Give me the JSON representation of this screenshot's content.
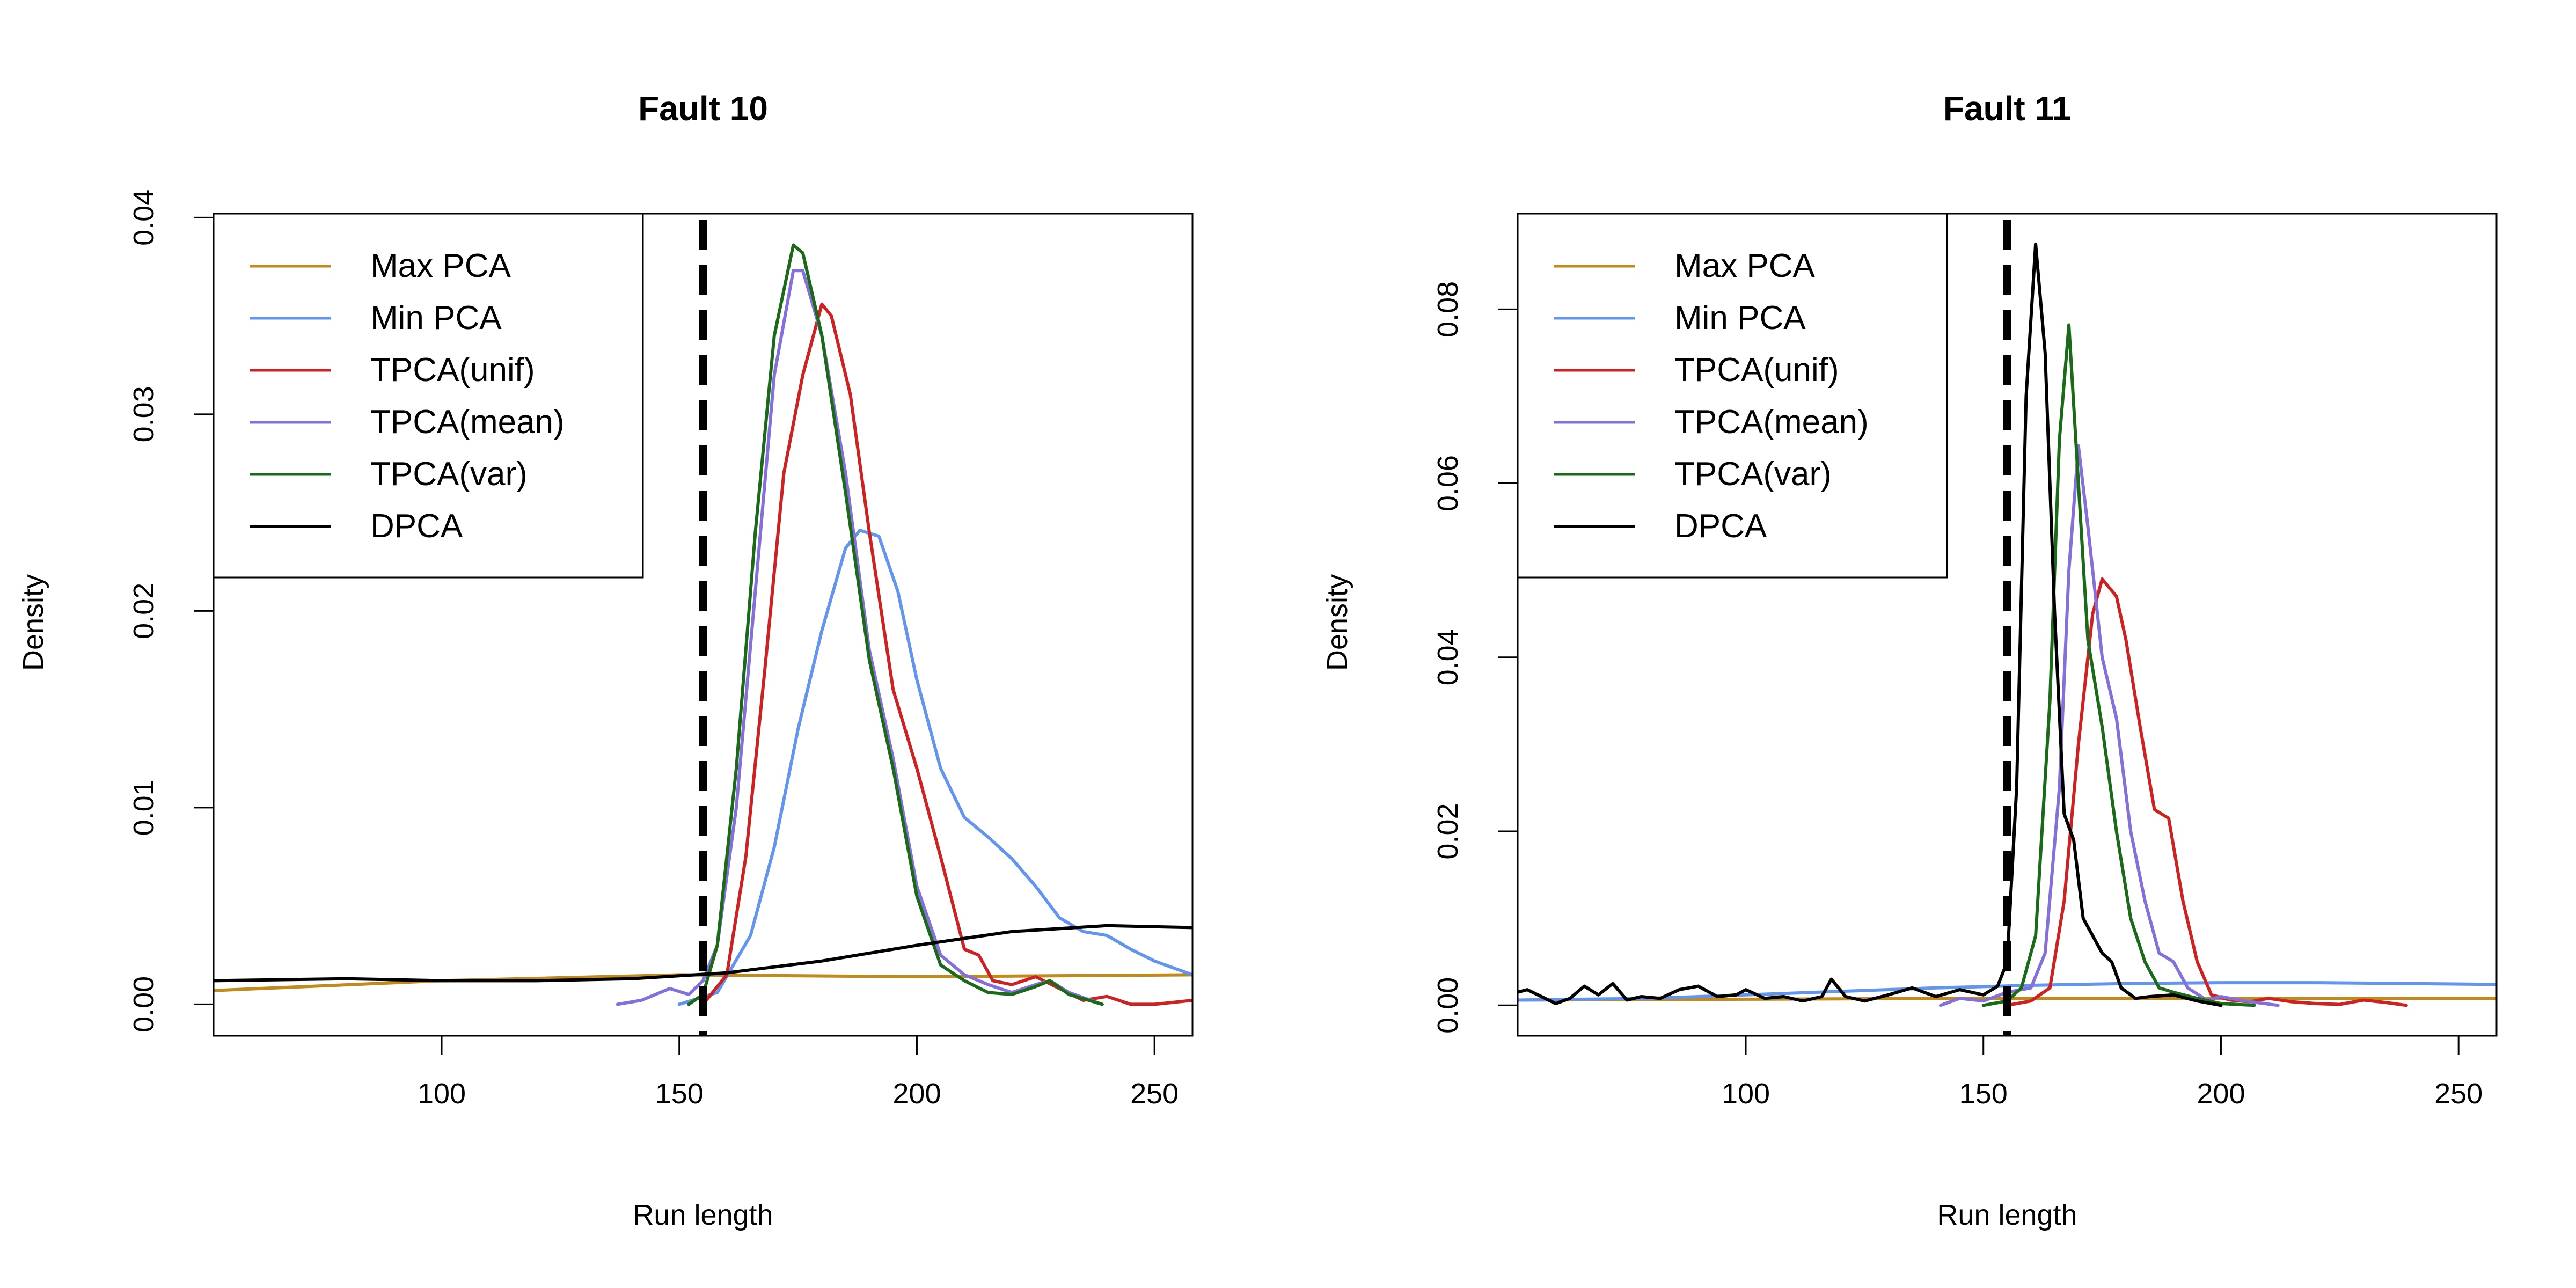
{
  "chart_data": [
    {
      "type": "line",
      "title": "Fault 10",
      "xlabel": "Run length",
      "ylabel": "Density",
      "xlim": [
        52,
        258
      ],
      "ylim": [
        -0.0016,
        0.0402
      ],
      "x_ticks": [
        100,
        150,
        200,
        250
      ],
      "y_ticks": [
        0.0,
        0.01,
        0.02,
        0.03,
        0.04
      ],
      "y_tick_labels": [
        "0.00",
        "0.01",
        "0.02",
        "0.03",
        "0.04"
      ],
      "grid": false,
      "legend_position": "top-left",
      "reference_line": {
        "x": 155,
        "style": "dashed"
      },
      "series": [
        {
          "name": "Max PCA",
          "color": "#C08A1E",
          "points": [
            [
              52,
              0.0007
            ],
            [
              100,
              0.0012
            ],
            [
              150,
              0.0015
            ],
            [
              200,
              0.0014
            ],
            [
              258,
              0.0015
            ]
          ]
        },
        {
          "name": "Min PCA",
          "color": "#6495ED",
          "points": [
            [
              150,
              0.0
            ],
            [
              158,
              0.0006
            ],
            [
              165,
              0.0035
            ],
            [
              170,
              0.008
            ],
            [
              175,
              0.014
            ],
            [
              180,
              0.019
            ],
            [
              185,
              0.0232
            ],
            [
              188,
              0.0241
            ],
            [
              192,
              0.0238
            ],
            [
              196,
              0.021
            ],
            [
              200,
              0.0165
            ],
            [
              205,
              0.012
            ],
            [
              210,
              0.0095
            ],
            [
              215,
              0.0085
            ],
            [
              220,
              0.0074
            ],
            [
              225,
              0.006
            ],
            [
              230,
              0.0044
            ],
            [
              235,
              0.0037
            ],
            [
              240,
              0.0035
            ],
            [
              245,
              0.0028
            ],
            [
              250,
              0.0022
            ],
            [
              258,
              0.0015
            ]
          ]
        },
        {
          "name": "TPCA(unif)",
          "color": "#CC2222",
          "points": [
            [
              155,
              0.0
            ],
            [
              160,
              0.0015
            ],
            [
              164,
              0.0075
            ],
            [
              168,
              0.017
            ],
            [
              172,
              0.027
            ],
            [
              176,
              0.032
            ],
            [
              180,
              0.0356
            ],
            [
              182,
              0.035
            ],
            [
              186,
              0.031
            ],
            [
              190,
              0.024
            ],
            [
              195,
              0.016
            ],
            [
              200,
              0.012
            ],
            [
              205,
              0.0075
            ],
            [
              210,
              0.0028
            ],
            [
              213,
              0.0025
            ],
            [
              216,
              0.0012
            ],
            [
              220,
              0.001
            ],
            [
              225,
              0.0014
            ],
            [
              230,
              0.0008
            ],
            [
              235,
              0.0002
            ],
            [
              240,
              0.0004
            ],
            [
              245,
              0.0
            ],
            [
              250,
              0.0
            ],
            [
              258,
              0.0002
            ]
          ]
        },
        {
          "name": "TPCA(mean)",
          "color": "#8470D8",
          "points": [
            [
              137,
              0.0
            ],
            [
              142,
              0.0002
            ],
            [
              148,
              0.0008
            ],
            [
              152,
              0.0005
            ],
            [
              155,
              0.0012
            ],
            [
              158,
              0.003
            ],
            [
              162,
              0.01
            ],
            [
              166,
              0.021
            ],
            [
              170,
              0.032
            ],
            [
              174,
              0.0373
            ],
            [
              176,
              0.0373
            ],
            [
              180,
              0.034
            ],
            [
              185,
              0.027
            ],
            [
              190,
              0.018
            ],
            [
              195,
              0.0125
            ],
            [
              200,
              0.006
            ],
            [
              205,
              0.0025
            ],
            [
              210,
              0.0015
            ],
            [
              215,
              0.001
            ],
            [
              220,
              0.0006
            ],
            [
              225,
              0.001
            ],
            [
              228,
              0.0012
            ],
            [
              232,
              0.0006
            ],
            [
              239,
              0.0
            ]
          ]
        },
        {
          "name": "TPCA(var)",
          "color": "#1A6A1A",
          "points": [
            [
              152,
              0.0
            ],
            [
              155,
              0.0005
            ],
            [
              158,
              0.003
            ],
            [
              162,
              0.012
            ],
            [
              166,
              0.024
            ],
            [
              170,
              0.034
            ],
            [
              174,
              0.0386
            ],
            [
              176,
              0.0382
            ],
            [
              180,
              0.034
            ],
            [
              185,
              0.026
            ],
            [
              190,
              0.0175
            ],
            [
              195,
              0.012
            ],
            [
              200,
              0.0055
            ],
            [
              205,
              0.002
            ],
            [
              210,
              0.0012
            ],
            [
              215,
              0.0006
            ],
            [
              220,
              0.0005
            ],
            [
              225,
              0.0009
            ],
            [
              228,
              0.0012
            ],
            [
              232,
              0.0005
            ],
            [
              239,
              0.0
            ]
          ]
        },
        {
          "name": "DPCA",
          "color": "#000000",
          "points": [
            [
              52,
              0.0012
            ],
            [
              80,
              0.0013
            ],
            [
              100,
              0.0012
            ],
            [
              120,
              0.0012
            ],
            [
              140,
              0.0013
            ],
            [
              160,
              0.0016
            ],
            [
              180,
              0.0022
            ],
            [
              200,
              0.003
            ],
            [
              220,
              0.0037
            ],
            [
              240,
              0.004
            ],
            [
              258,
              0.0039
            ]
          ]
        }
      ]
    },
    {
      "type": "line",
      "title": "Fault 11",
      "xlabel": "Run length",
      "ylabel": "Density",
      "xlim": [
        52,
        258
      ],
      "ylim": [
        -0.0035,
        0.091
      ],
      "x_ticks": [
        100,
        150,
        200,
        250
      ],
      "y_ticks": [
        0.0,
        0.02,
        0.04,
        0.06,
        0.08
      ],
      "y_tick_labels": [
        "0.00",
        "0.02",
        "0.04",
        "0.06",
        "0.08"
      ],
      "grid": false,
      "legend_position": "top-left",
      "reference_line": {
        "x": 155,
        "style": "dashed"
      },
      "series": [
        {
          "name": "Max PCA",
          "color": "#C08A1E",
          "points": [
            [
              52,
              0.0006
            ],
            [
              100,
              0.0007
            ],
            [
              150,
              0.0008
            ],
            [
              200,
              0.0008
            ],
            [
              258,
              0.0008
            ]
          ]
        },
        {
          "name": "Min PCA",
          "color": "#6495ED",
          "points": [
            [
              52,
              0.0006
            ],
            [
              80,
              0.0008
            ],
            [
              100,
              0.0012
            ],
            [
              120,
              0.0016
            ],
            [
              140,
              0.002
            ],
            [
              160,
              0.0023
            ],
            [
              180,
              0.0025
            ],
            [
              200,
              0.0026
            ],
            [
              220,
              0.0026
            ],
            [
              240,
              0.0025
            ],
            [
              258,
              0.0024
            ]
          ]
        },
        {
          "name": "TPCA(unif)",
          "color": "#CC2222",
          "points": [
            [
              155,
              0.0
            ],
            [
              160,
              0.0005
            ],
            [
              164,
              0.002
            ],
            [
              167,
              0.012
            ],
            [
              170,
              0.03
            ],
            [
              173,
              0.045
            ],
            [
              175,
              0.049
            ],
            [
              178,
              0.047
            ],
            [
              180,
              0.042
            ],
            [
              183,
              0.032
            ],
            [
              186,
              0.0225
            ],
            [
              189,
              0.0215
            ],
            [
              192,
              0.012
            ],
            [
              195,
              0.005
            ],
            [
              198,
              0.0012
            ],
            [
              202,
              0.0006
            ],
            [
              206,
              0.0004
            ],
            [
              210,
              0.0008
            ],
            [
              215,
              0.0004
            ],
            [
              220,
              0.0002
            ],
            [
              225,
              0.0001
            ],
            [
              230,
              0.0006
            ],
            [
              235,
              0.0003
            ],
            [
              239,
              0.0
            ]
          ]
        },
        {
          "name": "TPCA(mean)",
          "color": "#8470D8",
          "points": [
            [
              141,
              0.0
            ],
            [
              145,
              0.0008
            ],
            [
              150,
              0.0005
            ],
            [
              155,
              0.0015
            ],
            [
              160,
              0.002
            ],
            [
              163,
              0.006
            ],
            [
              166,
              0.025
            ],
            [
              168,
              0.05
            ],
            [
              170,
              0.0643
            ],
            [
              172,
              0.055
            ],
            [
              175,
              0.04
            ],
            [
              178,
              0.033
            ],
            [
              181,
              0.02
            ],
            [
              184,
              0.012
            ],
            [
              187,
              0.006
            ],
            [
              190,
              0.005
            ],
            [
              193,
              0.002
            ],
            [
              197,
              0.0006
            ],
            [
              200,
              0.001
            ],
            [
              205,
              0.0005
            ],
            [
              212,
              0.0
            ]
          ]
        },
        {
          "name": "TPCA(var)",
          "color": "#1A6A1A",
          "points": [
            [
              150,
              0.0
            ],
            [
              155,
              0.0005
            ],
            [
              158,
              0.002
            ],
            [
              161,
              0.008
            ],
            [
              164,
              0.035
            ],
            [
              166,
              0.065
            ],
            [
              168,
              0.0782
            ],
            [
              170,
              0.06
            ],
            [
              172,
              0.042
            ],
            [
              175,
              0.032
            ],
            [
              178,
              0.02
            ],
            [
              181,
              0.01
            ],
            [
              184,
              0.005
            ],
            [
              187,
              0.002
            ],
            [
              190,
              0.0015
            ],
            [
              195,
              0.0008
            ],
            [
              200,
              0.0002
            ],
            [
              207,
              0.0
            ]
          ]
        },
        {
          "name": "DPCA",
          "color": "#000000",
          "points": [
            [
              52,
              0.0015
            ],
            [
              54,
              0.0018
            ],
            [
              57,
              0.001
            ],
            [
              60,
              0.0002
            ],
            [
              63,
              0.0008
            ],
            [
              66,
              0.0022
            ],
            [
              69,
              0.0012
            ],
            [
              72,
              0.0025
            ],
            [
              75,
              0.0006
            ],
            [
              78,
              0.001
            ],
            [
              82,
              0.0008
            ],
            [
              86,
              0.0018
            ],
            [
              90,
              0.0022
            ],
            [
              94,
              0.001
            ],
            [
              98,
              0.0012
            ],
            [
              100,
              0.0018
            ],
            [
              104,
              0.0008
            ],
            [
              108,
              0.001
            ],
            [
              112,
              0.0005
            ],
            [
              116,
              0.001
            ],
            [
              118,
              0.003
            ],
            [
              121,
              0.001
            ],
            [
              125,
              0.0005
            ],
            [
              130,
              0.0012
            ],
            [
              135,
              0.002
            ],
            [
              140,
              0.001
            ],
            [
              145,
              0.0018
            ],
            [
              150,
              0.0012
            ],
            [
              153,
              0.0022
            ],
            [
              155,
              0.005
            ],
            [
              157,
              0.025
            ],
            [
              159,
              0.07
            ],
            [
              161,
              0.0875
            ],
            [
              163,
              0.075
            ],
            [
              165,
              0.045
            ],
            [
              167,
              0.022
            ],
            [
              169,
              0.019
            ],
            [
              171,
              0.01
            ],
            [
              173,
              0.008
            ],
            [
              175,
              0.006
            ],
            [
              177,
              0.005
            ],
            [
              179,
              0.002
            ],
            [
              182,
              0.0008
            ],
            [
              185,
              0.001
            ],
            [
              190,
              0.0012
            ],
            [
              195,
              0.0005
            ],
            [
              200,
              0.0
            ]
          ]
        }
      ]
    }
  ]
}
